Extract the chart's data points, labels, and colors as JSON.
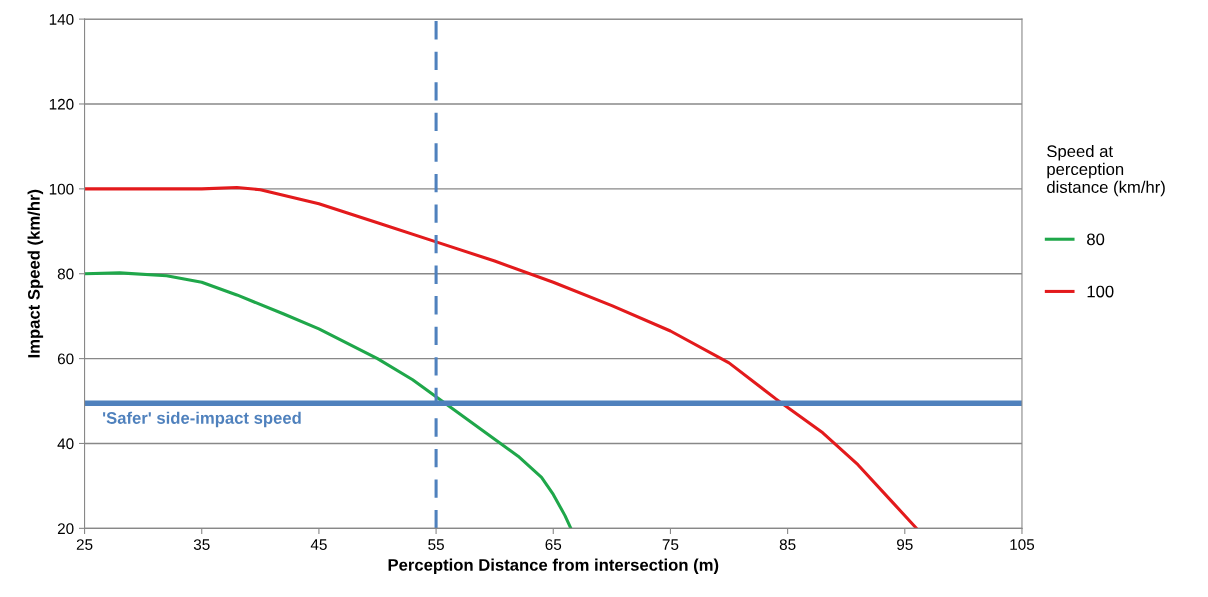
{
  "chart_data": {
    "type": "line",
    "xlabel": "Perception Distance from intersection (m)",
    "ylabel": "Impact Speed (km/hr)",
    "legend_title": "Speed at\nperception\ndistance (km/hr)",
    "xlim": [
      25,
      105
    ],
    "xticks": [
      25,
      35,
      45,
      55,
      65,
      75,
      85,
      95,
      105
    ],
    "ylim": [
      20,
      140
    ],
    "yticks": [
      20,
      40,
      60,
      80,
      100,
      120,
      140
    ],
    "grid": "y",
    "legend": "right",
    "marker": "none",
    "line_style": "solid",
    "series": [
      {
        "name": "80",
        "color": "#1fa74a",
        "x": [
          25,
          28,
          32,
          35,
          38,
          42,
          45,
          50,
          53,
          55,
          57,
          60,
          62,
          64,
          65,
          66,
          66.5
        ],
        "values": [
          80,
          80.2,
          79.5,
          78,
          75,
          70.5,
          67,
          60,
          55,
          51,
          47,
          41,
          37,
          32,
          28,
          23,
          20
        ]
      },
      {
        "name": "100",
        "color": "#e31a1c",
        "x": [
          25,
          35,
          38,
          40,
          45,
          50,
          55,
          60,
          65,
          70,
          75,
          80,
          84,
          88,
          91,
          94,
          96
        ],
        "values": [
          100,
          100,
          100.3,
          99.8,
          96.5,
          92,
          87.5,
          83,
          78,
          72.5,
          66.5,
          59,
          50.5,
          42.5,
          35,
          26,
          20
        ]
      }
    ],
    "ref_lines": [
      {
        "axis": "y",
        "value": 49.5,
        "label": "'Safer' side-impact speed",
        "color": "#4f81bd",
        "line_style": "solid"
      },
      {
        "axis": "x",
        "value": 55,
        "color": "#4f81bd",
        "line_style": "dashed"
      }
    ]
  }
}
